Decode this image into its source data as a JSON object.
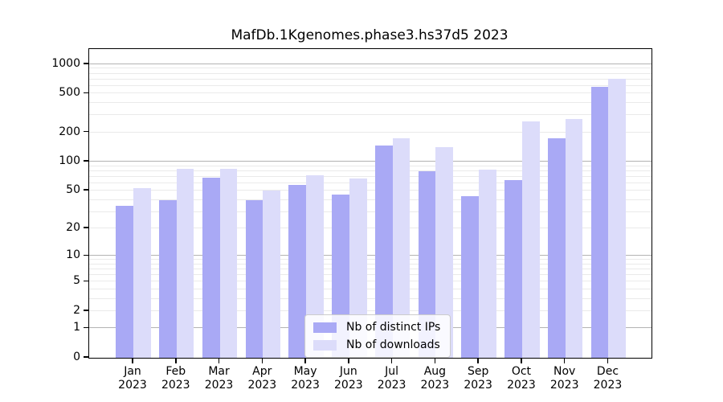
{
  "title": "MafDb.1Kgenomes.phase3.hs37d5 2023",
  "chart_data": {
    "type": "bar",
    "categories": [
      "Jan",
      "Feb",
      "Mar",
      "Apr",
      "May",
      "Jun",
      "Jul",
      "Aug",
      "Sep",
      "Oct",
      "Nov",
      "Dec"
    ],
    "year_label": "2023",
    "series": [
      {
        "name": "Nb of distinct IPs",
        "color": "#a9a9f5",
        "values": [
          35,
          40,
          69,
          40,
          58,
          46,
          147,
          80,
          44,
          65,
          174,
          583
        ]
      },
      {
        "name": "Nb of downloads",
        "color": "#dcdcfa",
        "values": [
          53,
          84,
          85,
          50,
          72,
          67,
          175,
          140,
          83,
          260,
          273,
          705
        ]
      }
    ],
    "title": "MafDb.1Kgenomes.phase3.hs37d5 2023",
    "xlabel": "",
    "ylabel": "",
    "yticks": [
      0,
      1,
      2,
      5,
      10,
      20,
      50,
      100,
      200,
      500,
      1000
    ],
    "ylim": [
      0,
      1200
    ],
    "scale": "log10(1+x)",
    "grid": true,
    "legend_position": "lower center"
  }
}
